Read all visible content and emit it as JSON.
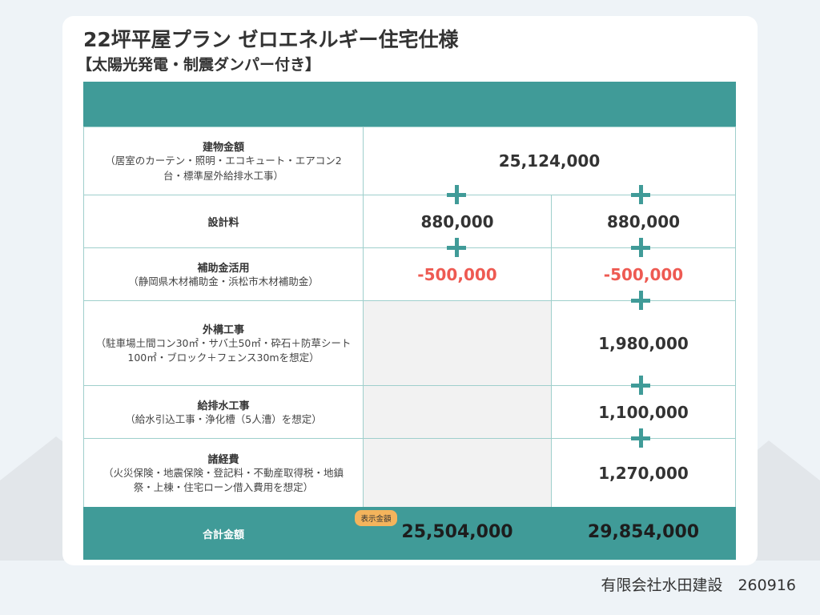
{
  "header": {
    "title": "22坪平屋プラン ゼロエネルギー住宅仕様",
    "subtitle": "【太陽光発電・制震ダンパー付き】"
  },
  "table": {
    "rows": [
      {
        "label": "建物金額",
        "note": "（居室のカーテン・照明・エコキュート・エアコン2台・標準屋外給排水工事）",
        "values": [
          "25,124,000"
        ]
      },
      {
        "label": "設計料",
        "values": [
          "880,000",
          "880,000"
        ]
      },
      {
        "label": "補助金活用",
        "note": "（静岡県木材補助金・浜松市木材補助金）",
        "values": [
          "-500,000",
          "-500,000"
        ]
      },
      {
        "label": "外構工事",
        "note": "（駐車場土間コン30㎡・サバ土50㎡・砕石＋防草シート100㎡・ブロック＋フェンス30mを想定）",
        "values": [
          "1,980,000"
        ]
      },
      {
        "label": "給排水工事",
        "note": "（給水引込工事・浄化槽（5人漕）を想定）",
        "values": [
          "1,100,000"
        ]
      },
      {
        "label": "諸経費",
        "note": "（火災保険・地震保険・登記料・不動産取得税・地鎮祭・上棟・住宅ローン借入費用を想定）",
        "values": [
          "1,270,000"
        ]
      }
    ],
    "total": {
      "label": "合計金額",
      "badge": "表示金額",
      "values": [
        "25,504,000",
        "29,854,000"
      ]
    }
  },
  "footer": "有限会社水田建設　260916"
}
